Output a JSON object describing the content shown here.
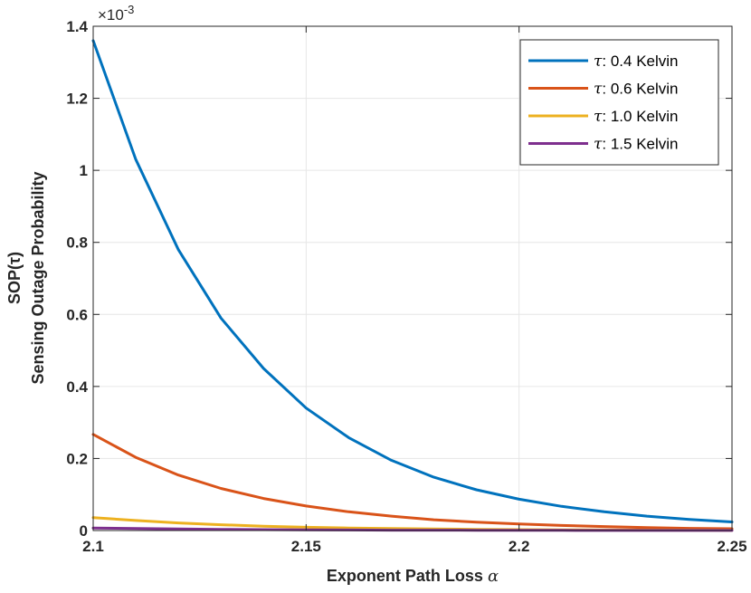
{
  "chart_data": {
    "type": "line",
    "xlabel": "Exponent Path Loss",
    "xlabel_symbol": "α",
    "ylabel_line1": "SOP(τ)",
    "ylabel_line2": "Sensing Outage Probability",
    "exponent_label": "×10",
    "exponent_power": "-3",
    "xlim": [
      2.1,
      2.25
    ],
    "ylim": [
      0,
      1.4
    ],
    "x_ticks": [
      "2.1",
      "2.15",
      "2.2",
      "2.25"
    ],
    "x_tick_values": [
      2.1,
      2.15,
      2.2,
      2.25
    ],
    "y_ticks": [
      "0",
      "0.2",
      "0.4",
      "0.6",
      "0.8",
      "1",
      "1.2",
      "1.4"
    ],
    "y_tick_values": [
      0,
      0.2,
      0.4,
      0.6,
      0.8,
      1.0,
      1.2,
      1.4
    ],
    "grid": true,
    "legend_position": "top-right",
    "x": [
      2.1,
      2.11,
      2.12,
      2.13,
      2.14,
      2.15,
      2.16,
      2.17,
      2.18,
      2.19,
      2.2,
      2.21,
      2.22,
      2.23,
      2.24,
      2.25
    ],
    "series": [
      {
        "symbol": "τ",
        "name": ": 0.4 Kelvin",
        "color": "#0072BD",
        "values": [
          1.36,
          1.03,
          0.78,
          0.59,
          0.45,
          0.34,
          0.258,
          0.195,
          0.148,
          0.113,
          0.087,
          0.067,
          0.052,
          0.04,
          0.031,
          0.024
        ]
      },
      {
        "symbol": "τ",
        "name": ": 0.6 Kelvin",
        "color": "#D95319",
        "values": [
          0.267,
          0.203,
          0.154,
          0.117,
          0.089,
          0.068,
          0.052,
          0.04,
          0.03,
          0.023,
          0.018,
          0.014,
          0.011,
          0.008,
          0.006,
          0.005
        ]
      },
      {
        "symbol": "τ",
        "name": ": 1.0 Kelvin",
        "color": "#EDB120",
        "values": [
          0.036,
          0.028,
          0.021,
          0.016,
          0.012,
          0.009,
          0.007,
          0.0055,
          0.0042,
          0.0033,
          0.0025,
          0.002,
          0.0015,
          0.0012,
          0.0009,
          0.0007
        ]
      },
      {
        "symbol": "τ",
        "name": ": 1.5 Kelvin",
        "color": "#7E2F8E",
        "values": [
          0.007,
          0.0055,
          0.0042,
          0.0032,
          0.0025,
          0.0019,
          0.0015,
          0.0011,
          0.0009,
          0.0007,
          0.0005,
          0.0004,
          0.0003,
          0.00025,
          0.0002,
          0.00015
        ]
      }
    ]
  }
}
